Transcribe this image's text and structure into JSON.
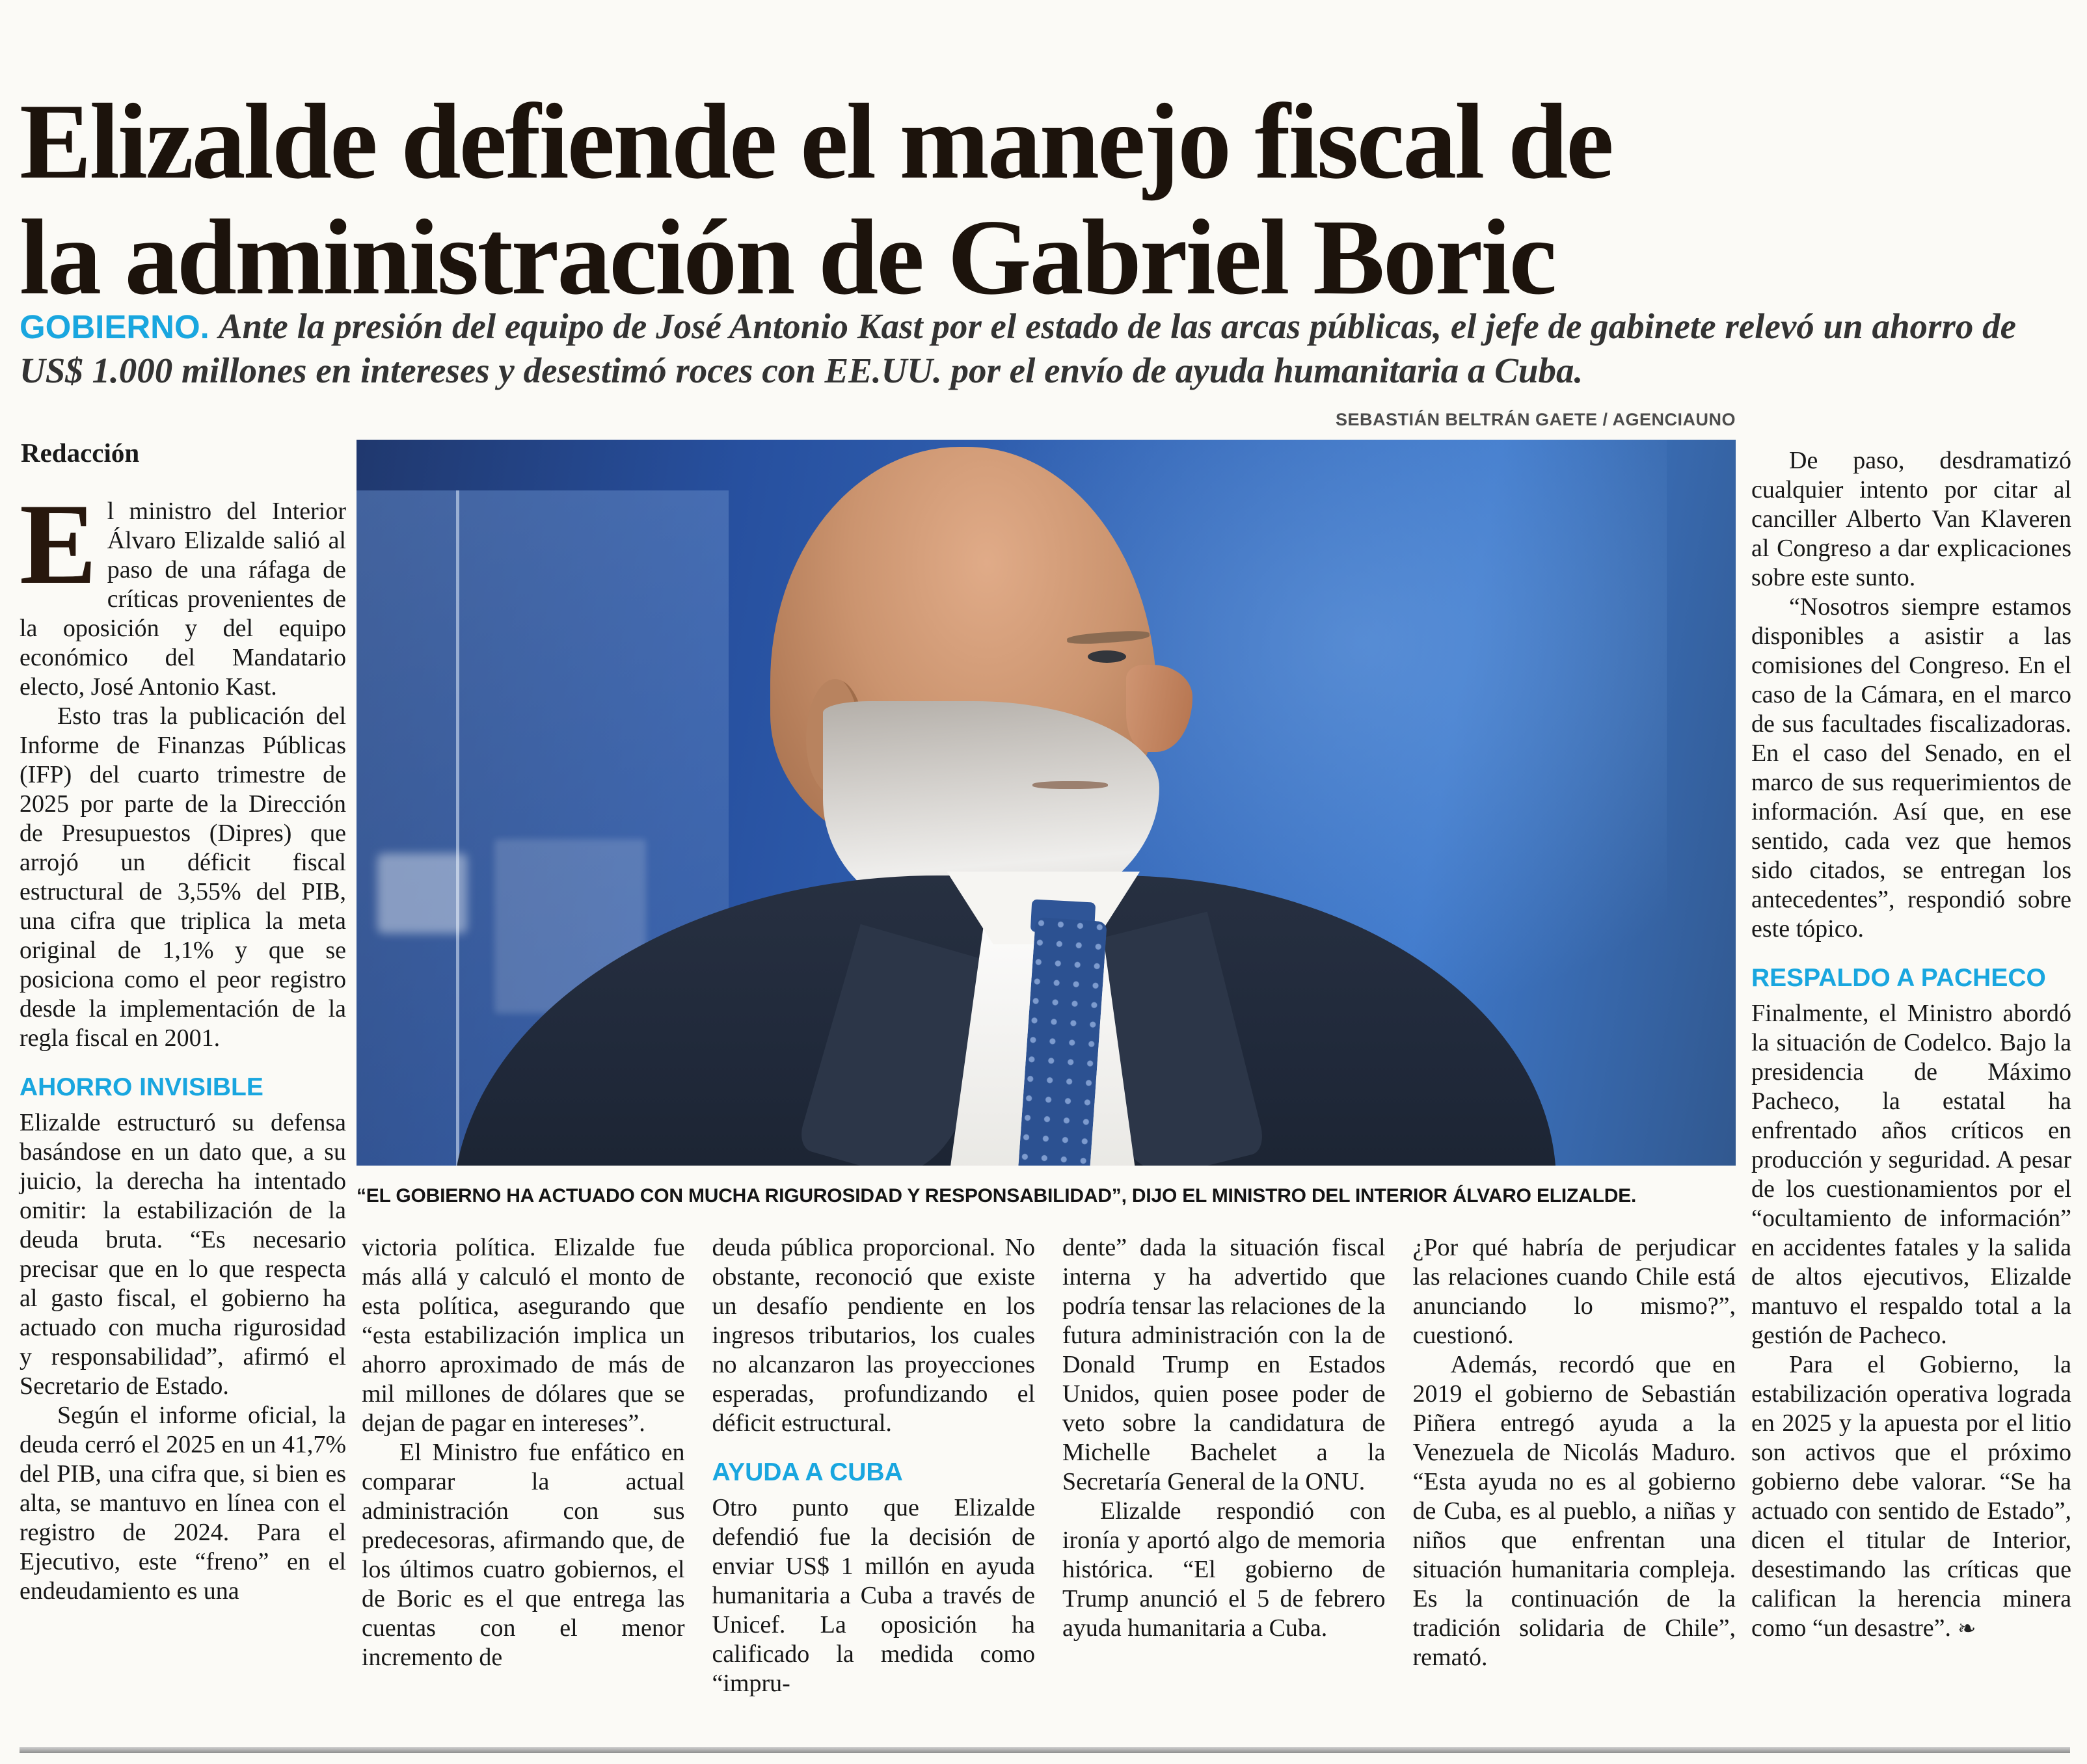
{
  "theme": {
    "accent": "#19a6df",
    "headline_color": "#1c130c"
  },
  "headline": {
    "line1": "Elizalde defiende el manejo fiscal de",
    "line2": "la administración de Gabriel Boric"
  },
  "deck": {
    "kicker": "GOBIERNO.",
    "text": "Ante la presión del equipo de José Antonio Kast por el estado de las arcas públicas, el jefe de gabinete relevó un ahorro de US$ 1.000 millones en intereses y desestimó roces con EE.UU. por el envío de ayuda humanitaria a Cuba."
  },
  "photo": {
    "credit": "SEBASTIÁN BELTRÁN GAETE / AGENCIAUNO",
    "caption": "“EL GOBIERNO HA ACTUADO CON MUCHA RIGUROSIDAD Y RESPONSABILIDAD”, DIJO EL MINISTRO DEL INTERIOR ÁLVARO ELIZALDE.",
    "subject": "minister-alvaro-elizalde-portrait"
  },
  "article": {
    "byline": "Redacción",
    "col1": {
      "dropcap": "E",
      "p1": "l ministro del Interior Álvaro Elizalde salió al paso de una ráfaga de críticas provenientes de la oposición y del equipo económico del Mandatario electo, José Antonio Kast.",
      "p2": "Esto tras la publicación del Informe de Finanzas Públicas (IFP) del cuarto trimestre de 2025 por parte de la Dirección de Presupuestos (Dipres) que arrojó un déficit fiscal estructural de 3,55% del PIB, una cifra que triplica la meta original de 1,1% y que se posiciona como el peor registro desde la implementación de la regla fiscal en 2001.",
      "h1": "AHORRO INVISIBLE",
      "p3": "Elizalde estructuró su defensa basándose en un dato que, a su juicio, la derecha ha intentado omitir: la estabilización de la deuda bruta. “Es necesario precisar que en lo que respecta al gasto fiscal, el gobierno ha actuado con mucha rigurosidad y responsabilidad”, afirmó el Secretario de Estado.",
      "p4": "Según el informe oficial, la deuda cerró el 2025 en un 41,7% del PIB, una cifra que, si bien es alta, se mantuvo en línea con el registro de 2024. Para el Ejecutivo, este “freno” en el endeudamiento es una"
    },
    "col2": {
      "p1": "victoria política. Elizalde fue más allá y calculó el monto de esta política, asegurando que “esta estabilización implica un ahorro aproximado de más de mil millones de dólares que se dejan de pagar en intereses”.",
      "p2": "El Ministro fue enfático en comparar la actual administración con sus predecesoras, afirmando que, de los últimos cuatro gobiernos, el de Boric es el que entrega las cuentas con el menor incremento de"
    },
    "col3": {
      "p1": "deuda pública proporcional. No obstante, reconoció que existe un desafío pendiente en los ingresos tributarios, los cuales no alcanzaron las proyecciones esperadas, profundizando el déficit estructural.",
      "h1": "AYUDA A CUBA",
      "p2": "Otro punto que Elizalde defendió fue la decisión de enviar US$ 1 millón en ayuda humanitaria a Cuba a través de Unicef. La oposición ha calificado la medida como “impru-"
    },
    "col4": {
      "p1": "dente” dada la situación fiscal interna y ha advertido que podría tensar las relaciones de la futura administración con la de Donald Trump en Estados Unidos, quien posee poder de veto sobre la candidatura de Michelle Bachelet a la Secretaría General de la ONU.",
      "p2": "Elizalde respondió con ironía y aportó algo de memoria histórica. “El gobierno de Trump anunció el 5 de febrero ayuda humanitaria a Cuba."
    },
    "col5": {
      "p1": "¿Por qué habría de perjudicar las relaciones cuando Chile está anunciando lo mismo?”, cuestionó.",
      "p2": "Además, recordó que en 2019 el gobierno de Sebastián Piñera entregó ayuda a la Venezuela de Nicolás Maduro. “Esta ayuda no es al gobierno de Cuba, es al pueblo, a niñas y niños que enfrentan una situación humanitaria compleja. Es la continuación de la tradición solidaria de Chile”, remató."
    },
    "col6": {
      "p1": "De paso, desdramatizó cualquier intento por citar al canciller Alberto Van Klaveren al Congreso a dar explicaciones sobre este sunto.",
      "p2": "“Nosotros siempre estamos disponibles a asistir a las comisiones del Congreso. En el caso de la Cámara, en el marco de sus facultades fiscalizadoras. En el caso del Senado, en el marco de sus requerimientos de información. Así que, en ese sentido, cada vez que hemos sido citados, se entregan los antecedentes”, respondió sobre este tópico.",
      "h1": "RESPALDO A PACHECO",
      "p3": "Finalmente, el Ministro abordó la situación de Codelco. Bajo la presidencia de Máximo Pacheco, la estatal ha enfrentado años críticos en producción y seguridad. A pesar de los cuestionamientos por el “ocultamiento de información” en accidentes fatales y la salida de altos ejecutivos, Elizalde mantuvo el respaldo total a la gestión de Pacheco.",
      "p4": "Para el Gobierno, la estabilización operativa lograda en 2025 y la apuesta por el litio son activos que el próximo gobierno debe valorar. “Se ha actuado con sentido de Estado”, dicen el titular de Interior, desestimando las críticas que califican la herencia minera como “un desastre”.",
      "endmark": "❧"
    }
  }
}
